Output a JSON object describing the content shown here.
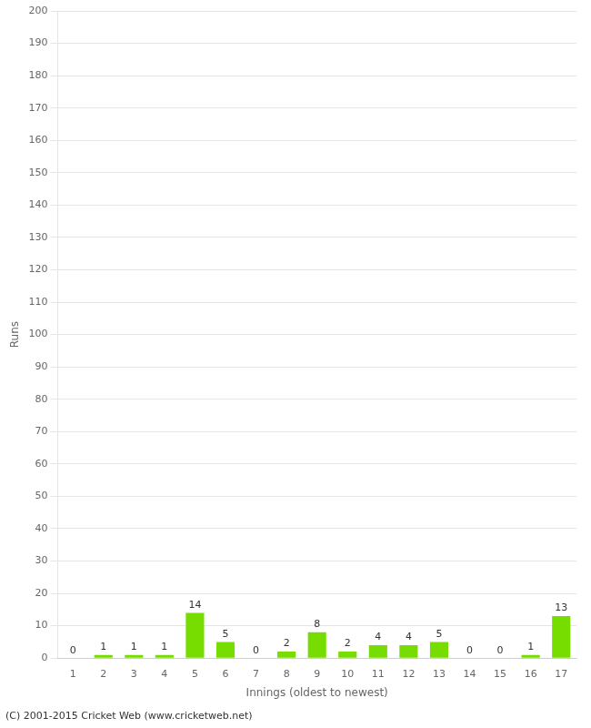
{
  "chart_data": {
    "type": "bar",
    "xlabel": "Innings (oldest to newest)",
    "ylabel": "Runs",
    "categories": [
      "1",
      "2",
      "3",
      "4",
      "5",
      "6",
      "7",
      "8",
      "9",
      "10",
      "11",
      "12",
      "13",
      "14",
      "15",
      "16",
      "17"
    ],
    "values": [
      0,
      1,
      1,
      1,
      14,
      5,
      0,
      2,
      8,
      2,
      4,
      4,
      5,
      0,
      0,
      1,
      13
    ],
    "color": "#77dd00",
    "ylim": [
      0,
      200
    ],
    "yticks": [
      0,
      10,
      20,
      30,
      40,
      50,
      60,
      70,
      80,
      90,
      100,
      110,
      120,
      130,
      140,
      150,
      160,
      170,
      180,
      190,
      200
    ],
    "grid": true,
    "data_labels": true,
    "annotations": [
      "(C) 2001-2015 Cricket Web (www.cricketweb.net)"
    ]
  }
}
